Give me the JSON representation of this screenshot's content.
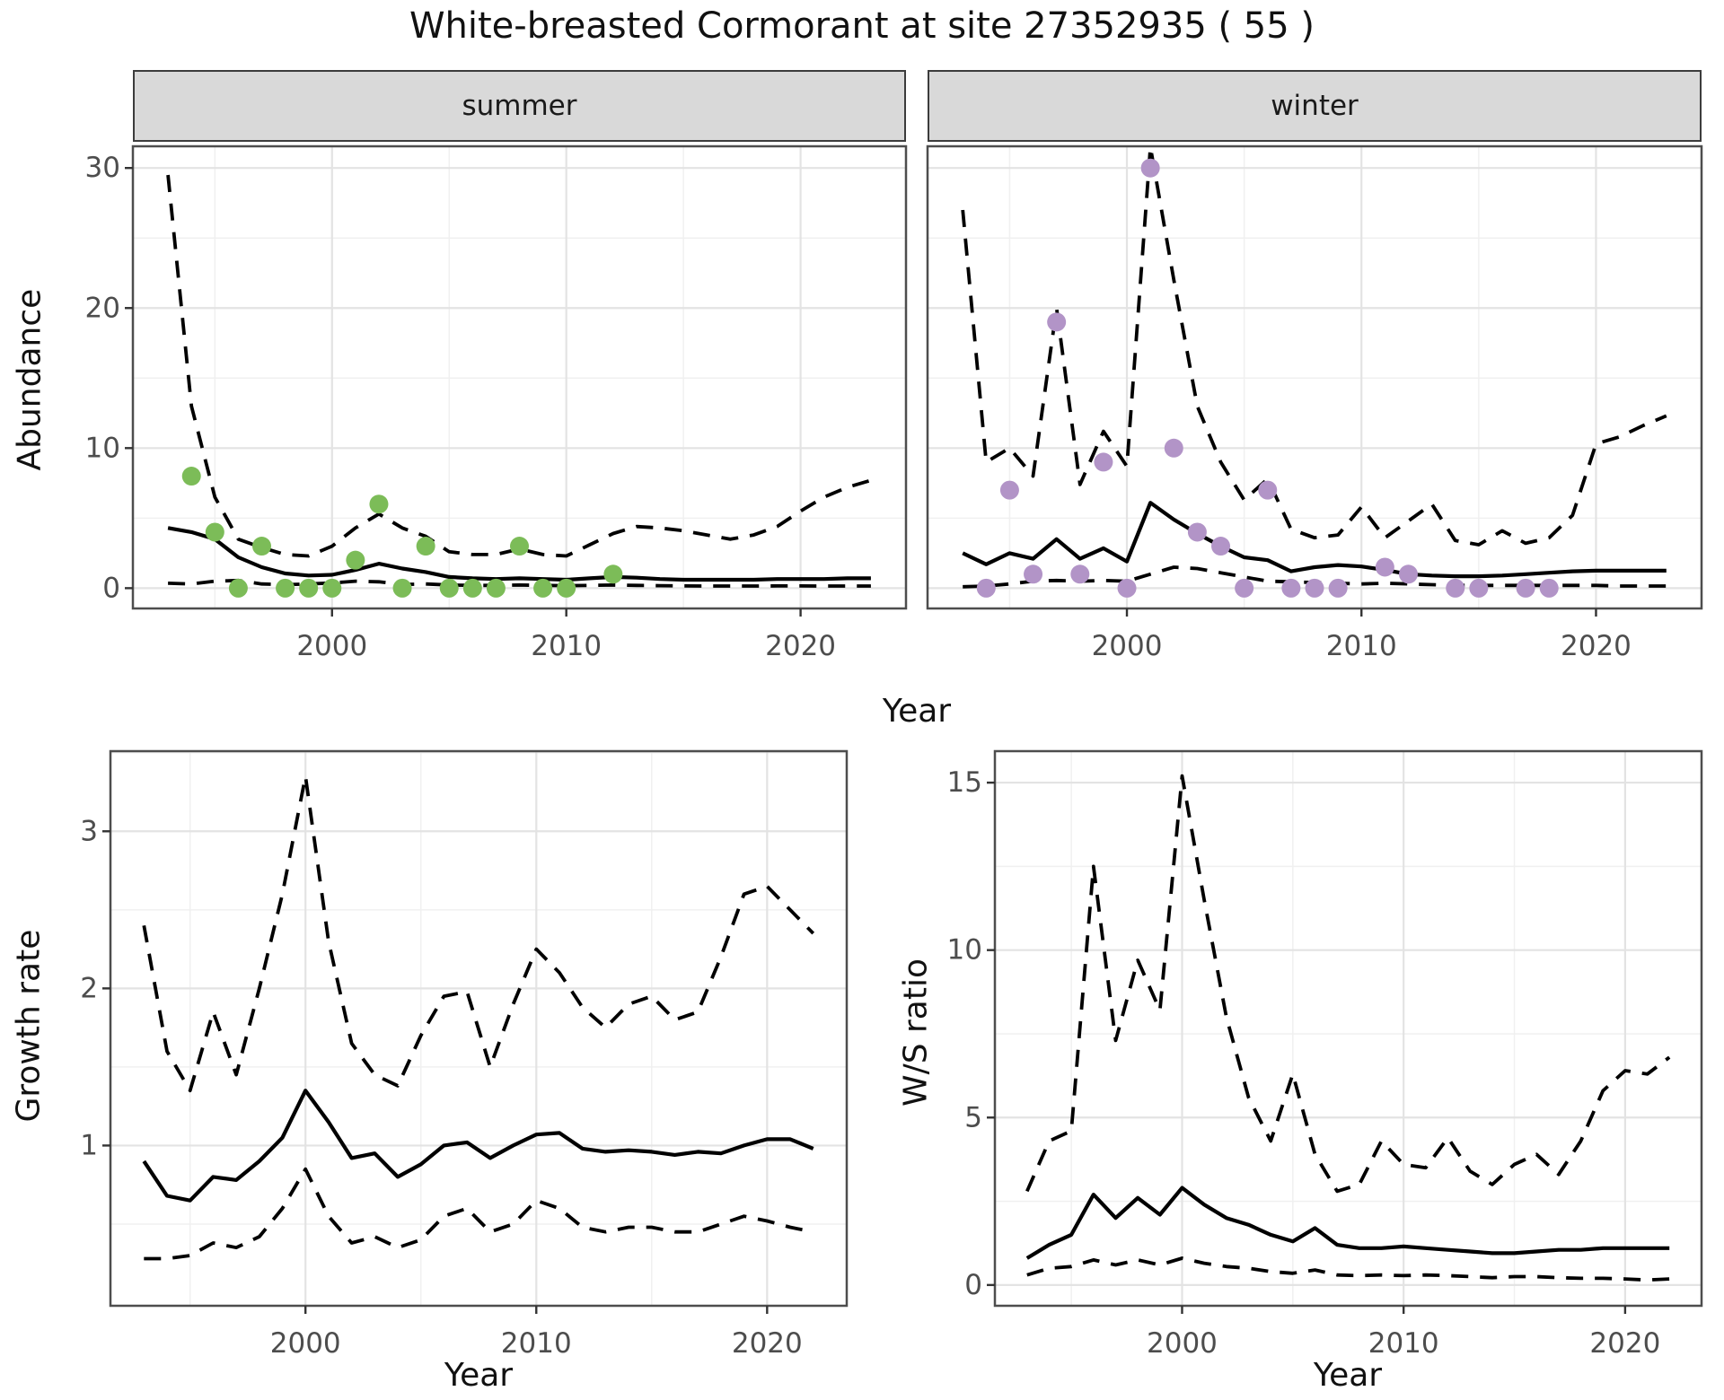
{
  "title": "White-breasted Cormorant at site 27352935 ( 55 )",
  "labels": {
    "y_abundance": "Abundance",
    "y_growth": "Growth rate",
    "y_ws": "W/S ratio",
    "x": "Year",
    "facet_summer": "summer",
    "facet_winter": "winter"
  },
  "colors": {
    "summer_point": "#7cbc58",
    "winter_point": "#b294c7",
    "line": "#000000",
    "strip_bg": "#d9d9d9",
    "grid_major": "#e3e3e3",
    "grid_minor": "#f0f0f0",
    "border": "#4d4d4d",
    "tick_mark": "#333333",
    "tick_text": "#4d4d4d"
  },
  "chart_data": [
    {
      "id": "summer",
      "type": "line",
      "facet": "summer",
      "ylabel": "Abundance",
      "xlabel": "Year",
      "xlim": [
        1991.5,
        2024.5
      ],
      "ylim": [
        -1.45,
        31.55
      ],
      "xticks": [
        2000,
        2010,
        2020
      ],
      "xminor": [
        1995,
        2005,
        2015
      ],
      "yticks": [
        0,
        10,
        20,
        30
      ],
      "yminor": [
        5,
        15,
        25
      ],
      "show_y_axis": true,
      "x": [
        1993,
        1994,
        1995,
        1996,
        1997,
        1998,
        1999,
        2000,
        2001,
        2002,
        2003,
        2004,
        2005,
        2006,
        2007,
        2008,
        2009,
        2010,
        2011,
        2012,
        2013,
        2014,
        2015,
        2016,
        2017,
        2018,
        2019,
        2020,
        2021,
        2022,
        2023
      ],
      "series": [
        {
          "name": "estimate",
          "style": "solid",
          "values": [
            4.3,
            4.0,
            3.5,
            2.2,
            1.5,
            1.05,
            0.9,
            0.95,
            1.3,
            1.75,
            1.4,
            1.15,
            0.8,
            0.7,
            0.65,
            0.7,
            0.65,
            0.6,
            0.7,
            0.8,
            0.75,
            0.65,
            0.6,
            0.6,
            0.6,
            0.6,
            0.65,
            0.65,
            0.65,
            0.7,
            0.7
          ]
        },
        {
          "name": "upper95",
          "style": "dashed",
          "values": [
            29.5,
            13,
            6.5,
            3.5,
            2.9,
            2.4,
            2.3,
            3.0,
            4.3,
            5.3,
            4.3,
            3.7,
            2.6,
            2.4,
            2.4,
            2.8,
            2.4,
            2.3,
            3.1,
            3.9,
            4.4,
            4.3,
            4.1,
            3.8,
            3.5,
            3.8,
            4.4,
            5.5,
            6.5,
            7.2,
            7.7
          ]
        },
        {
          "name": "lower95",
          "style": "dashed",
          "values": [
            0.35,
            0.3,
            0.5,
            0.55,
            0.3,
            0.25,
            0.3,
            0.37,
            0.5,
            0.45,
            0.26,
            0.3,
            0.22,
            0.2,
            0.2,
            0.22,
            0.2,
            0.18,
            0.2,
            0.22,
            0.2,
            0.18,
            0.16,
            0.15,
            0.15,
            0.15,
            0.16,
            0.16,
            0.15,
            0.15,
            0.15
          ]
        }
      ],
      "points": {
        "color": "#7cbc58",
        "data": [
          [
            1994,
            8
          ],
          [
            1995,
            4
          ],
          [
            1996,
            0
          ],
          [
            1997,
            3
          ],
          [
            1998,
            0
          ],
          [
            1999,
            0
          ],
          [
            2000,
            0
          ],
          [
            2001,
            2
          ],
          [
            2002,
            6
          ],
          [
            2003,
            0
          ],
          [
            2004,
            3
          ],
          [
            2005,
            0
          ],
          [
            2006,
            0
          ],
          [
            2007,
            0
          ],
          [
            2008,
            3
          ],
          [
            2009,
            0
          ],
          [
            2010,
            0
          ],
          [
            2012,
            1
          ]
        ]
      }
    },
    {
      "id": "winter",
      "type": "line",
      "facet": "winter",
      "ylabel": "Abundance",
      "xlabel": "Year",
      "xlim": [
        1991.5,
        2024.5
      ],
      "ylim": [
        -1.45,
        31.55
      ],
      "xticks": [
        2000,
        2010,
        2020
      ],
      "xminor": [
        1995,
        2005,
        2015
      ],
      "yticks": [
        0,
        10,
        20,
        30
      ],
      "yminor": [
        5,
        15,
        25
      ],
      "show_y_axis": false,
      "x": [
        1993,
        1994,
        1995,
        1996,
        1997,
        1998,
        1999,
        2000,
        2001,
        2002,
        2003,
        2004,
        2005,
        2006,
        2007,
        2008,
        2009,
        2010,
        2011,
        2012,
        2013,
        2014,
        2015,
        2016,
        2017,
        2018,
        2019,
        2020,
        2021,
        2022,
        2023
      ],
      "series": [
        {
          "name": "estimate",
          "style": "solid",
          "values": [
            2.5,
            1.7,
            2.5,
            2.1,
            3.5,
            2.1,
            2.85,
            1.9,
            6.1,
            4.9,
            3.9,
            3.0,
            2.2,
            2.0,
            1.2,
            1.5,
            1.65,
            1.55,
            1.3,
            1.0,
            0.9,
            0.85,
            0.85,
            0.9,
            1.0,
            1.1,
            1.2,
            1.25,
            1.25,
            1.25,
            1.25
          ]
        },
        {
          "name": "upper95",
          "style": "dashed",
          "values": [
            27,
            9,
            10,
            8,
            20,
            7.4,
            11.2,
            8.7,
            31.5,
            22,
            13,
            9,
            6.3,
            7.8,
            4.2,
            3.6,
            3.8,
            5.8,
            3.6,
            4.8,
            6.0,
            3.4,
            3.1,
            4.1,
            3.2,
            3.6,
            5.2,
            10.3,
            10.8,
            11.6,
            12.3
          ]
        },
        {
          "name": "lower95",
          "style": "dashed",
          "values": [
            0.1,
            0.15,
            0.3,
            0.5,
            0.55,
            0.5,
            0.55,
            0.5,
            1.0,
            1.5,
            1.4,
            1.1,
            0.8,
            0.5,
            0.45,
            0.4,
            0.35,
            0.3,
            0.35,
            0.3,
            0.25,
            0.2,
            0.2,
            0.2,
            0.2,
            0.2,
            0.2,
            0.2,
            0.15,
            0.15,
            0.15
          ]
        }
      ],
      "points": {
        "color": "#b294c7",
        "data": [
          [
            1994,
            0
          ],
          [
            1995,
            7
          ],
          [
            1996,
            1
          ],
          [
            1997,
            19
          ],
          [
            1998,
            1
          ],
          [
            1999,
            9
          ],
          [
            2000,
            0
          ],
          [
            2001,
            30
          ],
          [
            2002,
            10
          ],
          [
            2003,
            4
          ],
          [
            2004,
            3
          ],
          [
            2005,
            0
          ],
          [
            2006,
            7
          ],
          [
            2007,
            0
          ],
          [
            2008,
            0
          ],
          [
            2009,
            0
          ],
          [
            2011,
            1.5
          ],
          [
            2012,
            1
          ],
          [
            2014,
            0
          ],
          [
            2015,
            0
          ],
          [
            2017,
            0
          ],
          [
            2018,
            0
          ]
        ]
      }
    },
    {
      "id": "growth",
      "type": "line",
      "facet": null,
      "ylabel": "Growth rate",
      "xlabel": "Year",
      "xlim": [
        1991.55,
        2023.45
      ],
      "ylim": [
        -0.02,
        3.51
      ],
      "xticks": [
        2000,
        2010,
        2020
      ],
      "xminor": [
        1995,
        2005,
        2015
      ],
      "yticks": [
        1,
        2,
        3
      ],
      "yminor": [
        0.5,
        1.5,
        2.5,
        3.5
      ],
      "show_y_axis": true,
      "x": [
        1993,
        1994,
        1995,
        1996,
        1997,
        1998,
        1999,
        2000,
        2001,
        2002,
        2003,
        2004,
        2005,
        2006,
        2007,
        2008,
        2009,
        2010,
        2011,
        2012,
        2013,
        2014,
        2015,
        2016,
        2017,
        2018,
        2019,
        2020,
        2021,
        2022
      ],
      "series": [
        {
          "name": "estimate",
          "style": "solid",
          "values": [
            0.9,
            0.68,
            0.65,
            0.8,
            0.78,
            0.9,
            1.05,
            1.35,
            1.15,
            0.92,
            0.95,
            0.8,
            0.88,
            1.0,
            1.02,
            0.92,
            1.0,
            1.07,
            1.08,
            0.98,
            0.96,
            0.97,
            0.96,
            0.94,
            0.96,
            0.95,
            1.0,
            1.04,
            1.04,
            0.98
          ]
        },
        {
          "name": "upper95",
          "style": "dashed",
          "values": [
            2.4,
            1.6,
            1.35,
            1.85,
            1.45,
            2.0,
            2.6,
            3.35,
            2.3,
            1.65,
            1.45,
            1.38,
            1.7,
            1.95,
            1.98,
            1.5,
            1.9,
            2.25,
            2.1,
            1.88,
            1.75,
            1.9,
            1.95,
            1.8,
            1.85,
            2.2,
            2.6,
            2.65,
            2.5,
            2.35
          ]
        },
        {
          "name": "lower95",
          "style": "dashed",
          "values": [
            0.28,
            0.28,
            0.3,
            0.38,
            0.35,
            0.42,
            0.6,
            0.85,
            0.55,
            0.38,
            0.42,
            0.35,
            0.4,
            0.55,
            0.6,
            0.45,
            0.5,
            0.65,
            0.6,
            0.48,
            0.45,
            0.48,
            0.48,
            0.45,
            0.45,
            0.5,
            0.55,
            0.52,
            0.48,
            0.45
          ]
        }
      ],
      "points": null
    },
    {
      "id": "ws",
      "type": "line",
      "facet": null,
      "ylabel": "W/S ratio",
      "xlabel": "Year",
      "xlim": [
        1991.55,
        2023.45
      ],
      "ylim": [
        -0.62,
        15.94
      ],
      "xticks": [
        2000,
        2010,
        2020
      ],
      "xminor": [
        1995,
        2005,
        2015
      ],
      "yticks": [
        0,
        5,
        10,
        15
      ],
      "yminor": [
        2.5,
        7.5,
        12.5
      ],
      "show_y_axis": true,
      "x": [
        1993,
        1994,
        1995,
        1996,
        1997,
        1998,
        1999,
        2000,
        2001,
        2002,
        2003,
        2004,
        2005,
        2006,
        2007,
        2008,
        2009,
        2010,
        2011,
        2012,
        2013,
        2014,
        2015,
        2016,
        2017,
        2018,
        2019,
        2020,
        2021,
        2022
      ],
      "series": [
        {
          "name": "estimate",
          "style": "solid",
          "values": [
            0.8,
            1.2,
            1.5,
            2.7,
            2.0,
            2.6,
            2.1,
            2.9,
            2.4,
            2.0,
            1.8,
            1.5,
            1.3,
            1.7,
            1.2,
            1.1,
            1.1,
            1.15,
            1.1,
            1.05,
            1.0,
            0.95,
            0.95,
            1.0,
            1.05,
            1.05,
            1.1,
            1.1,
            1.1,
            1.1
          ]
        },
        {
          "name": "upper95",
          "style": "dashed",
          "values": [
            2.8,
            4.3,
            4.6,
            12.5,
            7.3,
            9.7,
            8.2,
            15.2,
            11.5,
            8.0,
            5.6,
            4.3,
            6.3,
            3.9,
            2.8,
            3.0,
            4.3,
            3.6,
            3.5,
            4.4,
            3.4,
            3.0,
            3.6,
            3.9,
            3.3,
            4.3,
            5.8,
            6.4,
            6.3,
            6.8
          ]
        },
        {
          "name": "lower95",
          "style": "dashed",
          "values": [
            0.3,
            0.5,
            0.55,
            0.75,
            0.6,
            0.75,
            0.6,
            0.8,
            0.65,
            0.55,
            0.5,
            0.4,
            0.35,
            0.45,
            0.3,
            0.28,
            0.3,
            0.28,
            0.3,
            0.28,
            0.25,
            0.22,
            0.25,
            0.25,
            0.22,
            0.2,
            0.2,
            0.18,
            0.15,
            0.18
          ]
        }
      ],
      "points": null
    }
  ]
}
